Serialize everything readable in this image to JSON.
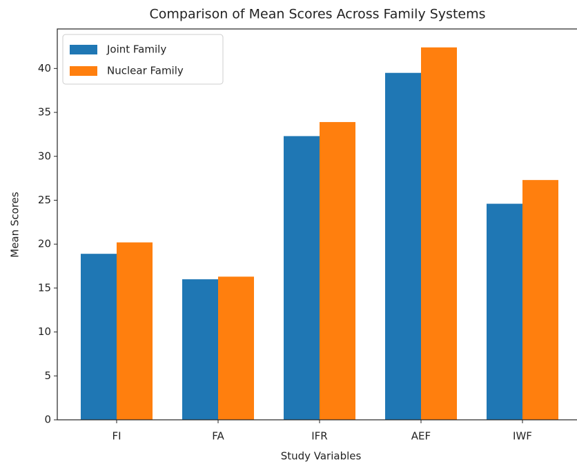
{
  "chart_data": {
    "type": "bar",
    "title": "Comparison of Mean Scores Across Family Systems",
    "xlabel": "Study Variables",
    "ylabel": "Mean Scores",
    "categories": [
      "FI",
      "FA",
      "IFR",
      "AEF",
      "IWF"
    ],
    "series": [
      {
        "name": "Joint Family",
        "color": "#1f77b4",
        "values": [
          18.9,
          16.0,
          32.3,
          39.5,
          24.6
        ]
      },
      {
        "name": "Nuclear Family",
        "color": "#ff7f0e",
        "values": [
          20.2,
          16.3,
          33.9,
          42.4,
          27.3
        ]
      }
    ],
    "ylim": [
      0,
      44.5
    ],
    "yticks": [
      0,
      5,
      10,
      15,
      20,
      25,
      30,
      35,
      40
    ],
    "legend": "upper left"
  }
}
